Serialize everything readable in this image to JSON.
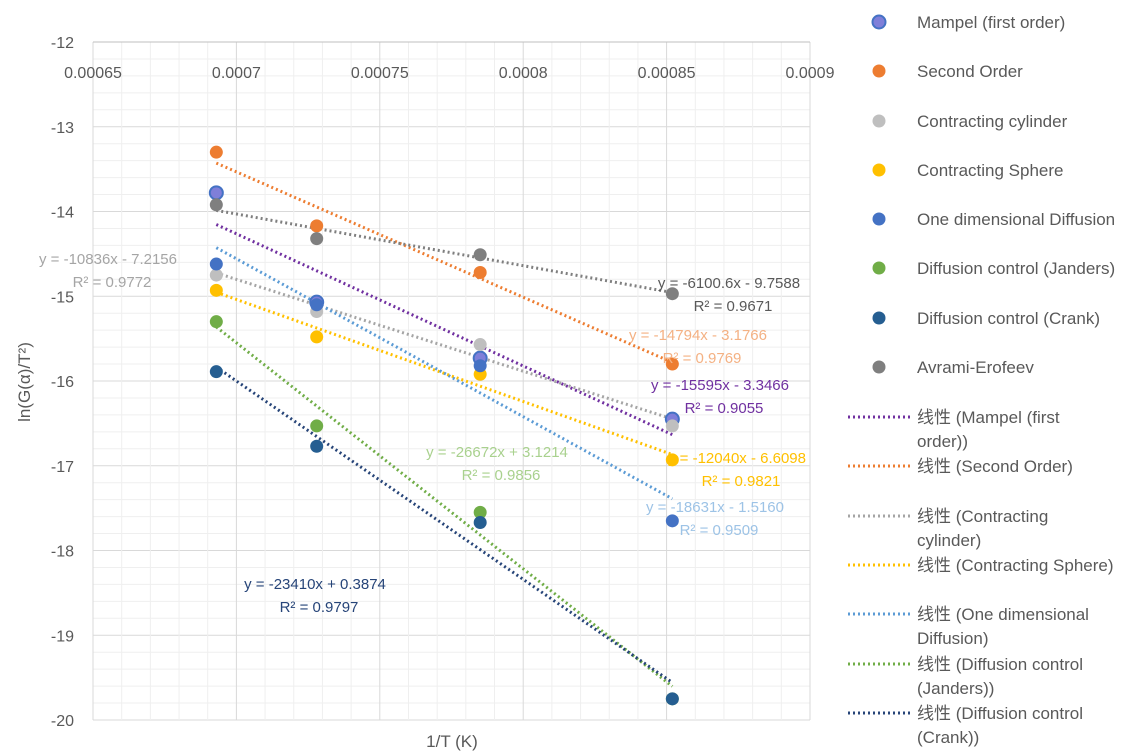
{
  "chart_data": {
    "type": "scatter",
    "xlabel": "1/T (K)",
    "ylabel": "ln(G(α)/T²)",
    "xlim": [
      0.00065,
      0.0009
    ],
    "ylim": [
      -20,
      -12
    ],
    "x_ticks": [
      "0.00065",
      "0.0007",
      "0.00075",
      "0.0008",
      "0.00085",
      "0.0009"
    ],
    "y_ticks": [
      "-12",
      "-13",
      "-14",
      "-15",
      "-16",
      "-17",
      "-18",
      "-19",
      "-20"
    ],
    "grid": true,
    "legend_position": "right",
    "x": [
      0.000693,
      0.000728,
      0.000785,
      0.000852
    ],
    "series": [
      {
        "name": "Mampel (first order)",
        "color": "#4472C4",
        "marker_fill": "#7F7FD9",
        "values": [
          -13.78,
          -15.07,
          -15.73,
          -16.45
        ],
        "trendline": {
          "legend": "线性 (Mampel (first order))",
          "color": "#7030A0",
          "slope": -15595,
          "intercept": -3.3466,
          "equation": "y = -15595x - 3.3466",
          "r2": "R² = 0.9055"
        }
      },
      {
        "name": "Second Order",
        "color": "#ED7D31",
        "values": [
          -13.3,
          -14.17,
          -14.72,
          -15.8
        ],
        "trendline": {
          "legend": "线性 (Second Order)",
          "color": "#ED7D31",
          "slope": -14794,
          "intercept": -3.1766,
          "equation": "y = -14794x - 3.1766",
          "r2": "R² = 0.9769"
        }
      },
      {
        "name": "Contracting cylinder",
        "color": "#BFBFBF",
        "values": [
          -14.75,
          -15.18,
          -15.57,
          -16.53
        ],
        "trendline": {
          "legend": "线性 (Contracting cylinder)",
          "color": "#A5A5A5",
          "slope": -10836,
          "intercept": -7.2156,
          "equation": "y = -10836x - 7.2156",
          "r2": "R² = 0.9772"
        }
      },
      {
        "name": "Contracting Sphere",
        "color": "#FFC000",
        "values": [
          -14.93,
          -15.48,
          -15.92,
          -16.93
        ],
        "trendline": {
          "legend": "线性 (Contracting Sphere)",
          "color": "#FFC000",
          "slope": -12040,
          "intercept": -6.6098,
          "equation": "y = -12040x - 6.6098",
          "r2": "R² = 0.9821"
        }
      },
      {
        "name": "One dimensional Diffusion",
        "color": "#4472C4",
        "values": [
          -14.62,
          -15.1,
          -15.82,
          -17.65
        ],
        "trendline": {
          "legend": "线性 (One dimensional Diffusion)",
          "color": "#5B9BD5",
          "slope": -18631,
          "intercept": -1.516,
          "equation": "y = -18631x - 1.5160",
          "r2": "R² = 0.9509"
        }
      },
      {
        "name": "Diffusion control (Janders)",
        "color": "#70AD47",
        "values": [
          -15.3,
          -16.53,
          -17.55,
          -19.75
        ],
        "trendline": {
          "legend": "线性 (Diffusion control (Janders))",
          "color": "#70AD47",
          "slope": -26672,
          "intercept": 3.1214,
          "equation": "y = -26672x + 3.1214",
          "r2": "R² = 0.9856"
        }
      },
      {
        "name": "Diffusion control (Crank)",
        "color": "#255E91",
        "values": [
          -15.89,
          -16.77,
          -17.67,
          -19.75
        ],
        "trendline": {
          "legend": "线性 (Diffusion control (Crank))",
          "color": "#264478",
          "slope": -23410,
          "intercept": 0.3874,
          "equation": "y = -23410x + 0.3874",
          "r2": "R² = 0.9797"
        }
      },
      {
        "name": "Avrami-Erofeev",
        "color": "#7F7F7F",
        "values": [
          -13.92,
          -14.32,
          -14.51,
          -14.97
        ],
        "trendline": {
          "legend": null,
          "color": "#7F7F7F",
          "slope": -6100.6,
          "intercept": -9.7588,
          "equation": "y = -6100.6x - 9.7588",
          "r2": "R² = 0.9671"
        }
      }
    ]
  }
}
